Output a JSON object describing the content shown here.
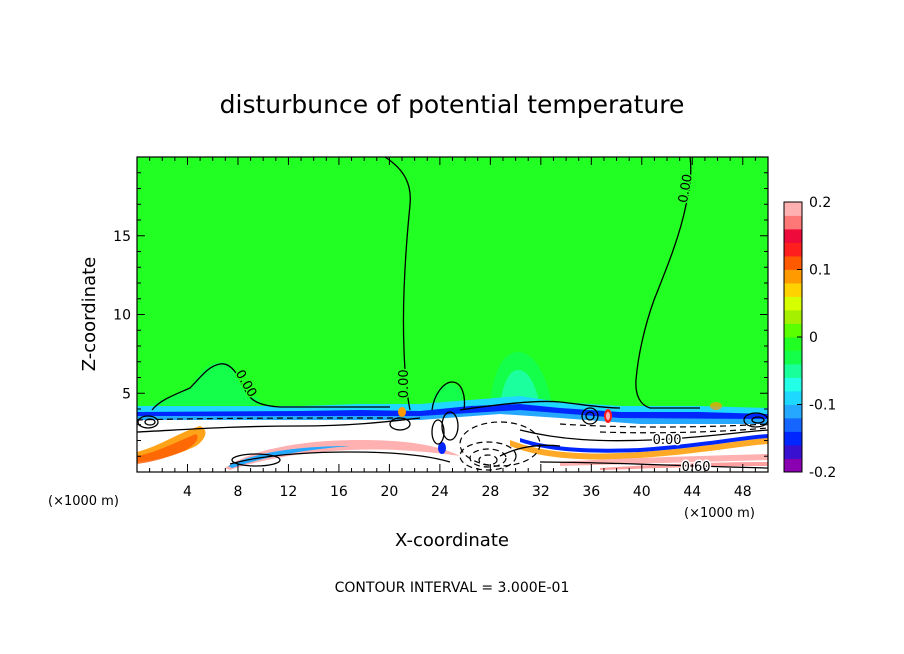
{
  "chart_data": {
    "type": "heatmap",
    "title": "disturbunce of potential temperature",
    "xlabel": "X-coordinate",
    "ylabel": "Z-coordinate",
    "x_unit_note": "(×1000 m)",
    "z_unit_note": "(×1000 m)",
    "xlim": [
      0,
      50
    ],
    "zlim": [
      0,
      20
    ],
    "x_ticks": [
      4,
      8,
      12,
      16,
      20,
      24,
      28,
      32,
      36,
      40,
      44,
      48
    ],
    "z_ticks": [
      5,
      10,
      15
    ],
    "colorbar": {
      "min": -0.2,
      "max": 0.2,
      "tick_labels": [
        "0.2",
        "0.1",
        "0",
        "-0.1",
        "-0.2"
      ],
      "tick_values": [
        0.2,
        0.1,
        0,
        -0.1,
        -0.2
      ],
      "colors": [
        "#8a00b0",
        "#3a10d0",
        "#0026ff",
        "#1466ff",
        "#25a8ff",
        "#1ed8ff",
        "#22ffe6",
        "#19ff9a",
        "#14ff4a",
        "#22ff22",
        "#5aff00",
        "#a4f000",
        "#d6ff00",
        "#ffd200",
        "#ff9a00",
        "#ff5a00",
        "#ff1e1e",
        "#ee0a3a",
        "#ff7878",
        "#ffb0b0"
      ]
    },
    "contour_labels": [
      {
        "text": "0.00",
        "x": 43.5,
        "z": 18.0,
        "angle": -80
      },
      {
        "text": "0.00",
        "x": 21.2,
        "z": 5.6,
        "angle": -90
      },
      {
        "text": "0.00",
        "x": 8.6,
        "z": 5.6,
        "angle": 60
      },
      {
        "text": "0.00",
        "x": 42.0,
        "z": 2.0,
        "angle": 0
      },
      {
        "text": "0.60",
        "x": 44.3,
        "z": 0.3,
        "angle": 0
      }
    ],
    "contour_interval": "CONTOUR INTERVAL = 3.000E-01"
  }
}
